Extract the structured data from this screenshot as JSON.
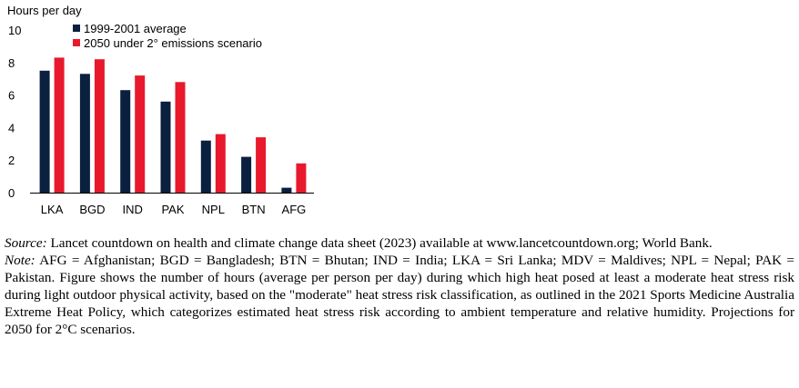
{
  "chart_data": {
    "type": "bar",
    "ylabel": "Hours per day",
    "ylim": [
      0,
      10
    ],
    "yticks": [
      0,
      2,
      4,
      6,
      8,
      10
    ],
    "categories": [
      "LKA",
      "BGD",
      "IND",
      "PAK",
      "NPL",
      "BTN",
      "AFG"
    ],
    "series": [
      {
        "name": "1999-2001 average",
        "color": "#0b1f3f",
        "values": [
          7.5,
          7.3,
          6.3,
          5.6,
          3.2,
          2.2,
          0.3
        ]
      },
      {
        "name": "2050 under 2° emissions scenario",
        "color": "#e8192c",
        "values": [
          8.3,
          8.2,
          7.2,
          6.8,
          3.6,
          3.4,
          1.8
        ]
      }
    ],
    "legend_position": "top-left",
    "grid": false
  },
  "notes": {
    "source_label": "Source:",
    "source_text": " Lancet countdown on health and climate change data sheet (2023) available at www.lancetcountdown.org; World Bank.",
    "note_label": "Note:",
    "note_text": " AFG = Afghanistan; BGD = Bangladesh; BTN = Bhutan; IND = India; LKA = Sri Lanka; MDV = Maldives; NPL = Nepal; PAK = Pakistan. Figure shows the number of hours (average per person per day) during which high heat posed at least a moderate heat stress risk during light outdoor physical activity, based on the \"moderate\" heat stress risk classification, as outlined in the 2021 Sports Medicine Australia Extreme Heat Policy, which categorizes estimated heat stress risk according to ambient temperature and relative humidity. Projections for 2050 for 2°C scenarios."
  }
}
